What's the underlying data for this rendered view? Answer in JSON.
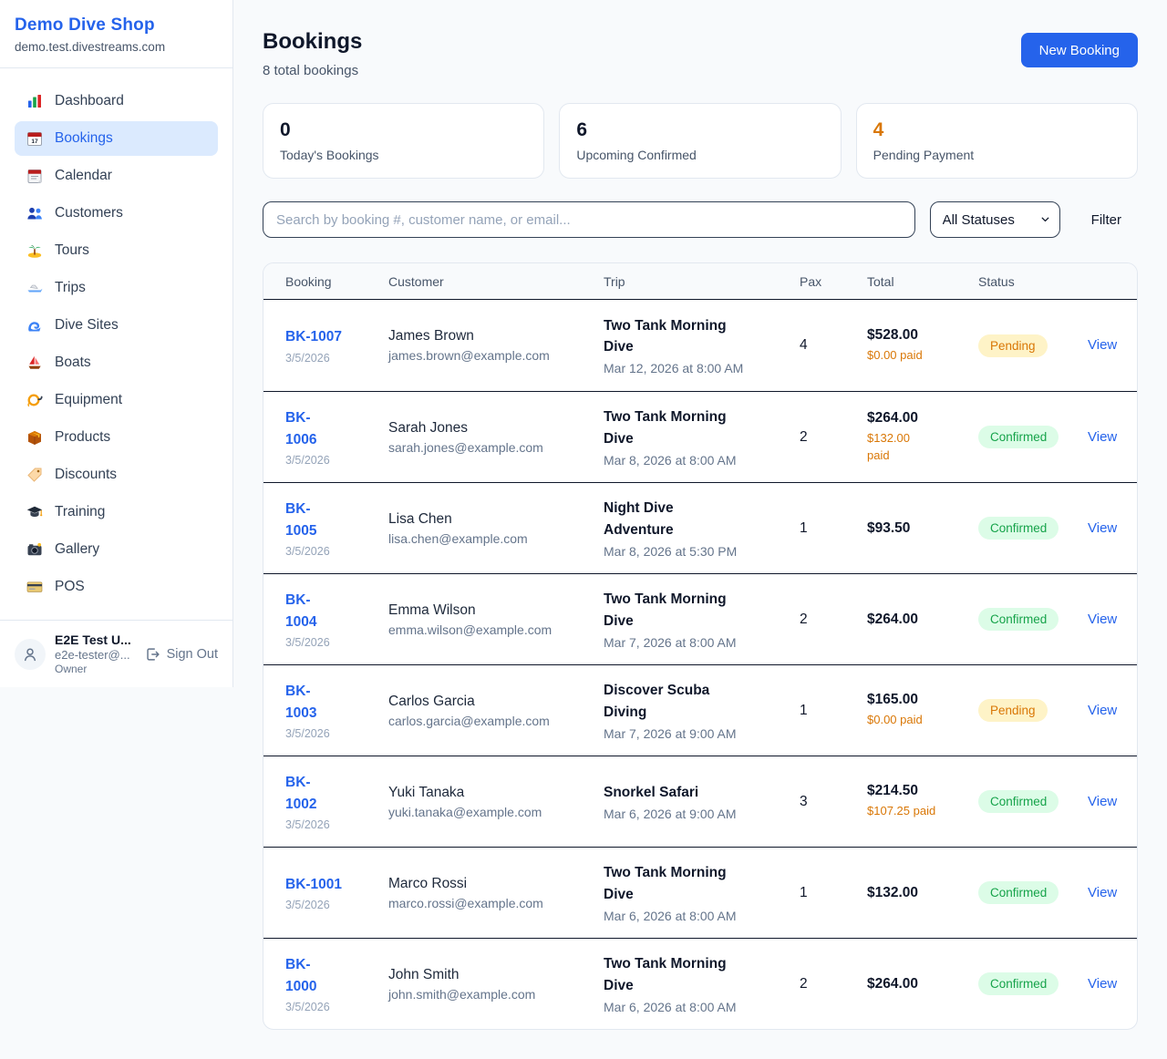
{
  "colors": {
    "accent": "#2563eb",
    "orange": "#d97706",
    "pending_badge_bg": "#fef3c7",
    "pending_badge_text": "#d97706",
    "confirmed_badge_bg": "#dcfce7",
    "confirmed_badge_text": "#16a34a"
  },
  "sidebar": {
    "shop_name": "Demo Dive Shop",
    "shop_domain": "demo.test.divestreams.com",
    "items": [
      {
        "label": "Dashboard",
        "icon": "bar-chart-icon",
        "active": false
      },
      {
        "label": "Bookings",
        "icon": "calendar-date-icon",
        "active": true
      },
      {
        "label": "Calendar",
        "icon": "calendar-icon",
        "active": false
      },
      {
        "label": "Customers",
        "icon": "people-icon",
        "active": false
      },
      {
        "label": "Tours",
        "icon": "island-icon",
        "active": false
      },
      {
        "label": "Trips",
        "icon": "speedboat-icon",
        "active": false
      },
      {
        "label": "Dive Sites",
        "icon": "wave-icon",
        "active": false
      },
      {
        "label": "Boats",
        "icon": "sailboat-icon",
        "active": false
      },
      {
        "label": "Equipment",
        "icon": "dive-mask-icon",
        "active": false
      },
      {
        "label": "Products",
        "icon": "package-icon",
        "active": false
      },
      {
        "label": "Discounts",
        "icon": "tag-icon",
        "active": false
      },
      {
        "label": "Training",
        "icon": "graduation-cap-icon",
        "active": false
      },
      {
        "label": "Gallery",
        "icon": "camera-icon",
        "active": false
      },
      {
        "label": "POS",
        "icon": "credit-card-icon",
        "active": false
      }
    ],
    "user": {
      "name": "E2E Test U...",
      "email": "e2e-tester@...",
      "role": "Owner",
      "sign_out_label": "Sign Out"
    }
  },
  "header": {
    "title": "Bookings",
    "subtitle": "8 total bookings",
    "new_booking_label": "New Booking"
  },
  "stats": [
    {
      "value": "0",
      "label": "Today's Bookings",
      "value_color": "#0f172a"
    },
    {
      "value": "6",
      "label": "Upcoming Confirmed",
      "value_color": "#0f172a"
    },
    {
      "value": "4",
      "label": "Pending Payment",
      "value_color": "#d97706"
    }
  ],
  "filters": {
    "search_placeholder": "Search by booking #, customer name, or email...",
    "search_value": "",
    "status_selected": "All Statuses",
    "filter_label": "Filter"
  },
  "table": {
    "columns": [
      "Booking",
      "Customer",
      "Trip",
      "Pax",
      "Total",
      "Status"
    ],
    "view_label": "View",
    "status_styles": {
      "Pending": {
        "bg": "#fef3c7",
        "text": "#d97706"
      },
      "Confirmed": {
        "bg": "#dcfce7",
        "text": "#16a34a"
      }
    },
    "rows": [
      {
        "id": "BK-1007",
        "id_wrapped": false,
        "date": "3/5/2026",
        "customer": "James Brown",
        "email": "james.brown@example.com",
        "trip": "Two Tank Morning Dive",
        "trip_datetime": "Mar 12, 2026 at 8:00 AM",
        "pax": "4",
        "total": "$528.00",
        "paid": "$0.00 paid",
        "paid_wrapped": false,
        "status": "Pending"
      },
      {
        "id": "BK-1006",
        "id_wrapped": true,
        "date": "3/5/2026",
        "customer": "Sarah Jones",
        "email": "sarah.jones@example.com",
        "trip": "Two Tank Morning Dive",
        "trip_datetime": "Mar 8, 2026 at 8:00 AM",
        "pax": "2",
        "total": "$264.00",
        "paid": "$132.00 paid",
        "paid_wrapped": true,
        "status": "Confirmed"
      },
      {
        "id": "BK-1005",
        "id_wrapped": true,
        "date": "3/5/2026",
        "customer": "Lisa Chen",
        "email": "lisa.chen@example.com",
        "trip": "Night Dive Adventure",
        "trip_datetime": "Mar 8, 2026 at 5:30 PM",
        "pax": "1",
        "total": "$93.50",
        "paid": null,
        "paid_wrapped": false,
        "status": "Confirmed"
      },
      {
        "id": "BK-1004",
        "id_wrapped": true,
        "date": "3/5/2026",
        "customer": "Emma Wilson",
        "email": "emma.wilson@example.com",
        "trip": "Two Tank Morning Dive",
        "trip_datetime": "Mar 7, 2026 at 8:00 AM",
        "pax": "2",
        "total": "$264.00",
        "paid": null,
        "paid_wrapped": false,
        "status": "Confirmed"
      },
      {
        "id": "BK-1003",
        "id_wrapped": true,
        "date": "3/5/2026",
        "customer": "Carlos Garcia",
        "email": "carlos.garcia@example.com",
        "trip": "Discover Scuba Diving",
        "trip_datetime": "Mar 7, 2026 at 9:00 AM",
        "pax": "1",
        "total": "$165.00",
        "paid": "$0.00 paid",
        "paid_wrapped": false,
        "status": "Pending"
      },
      {
        "id": "BK-1002",
        "id_wrapped": true,
        "date": "3/5/2026",
        "customer": "Yuki Tanaka",
        "email": "yuki.tanaka@example.com",
        "trip": "Snorkel Safari",
        "trip_datetime": "Mar 6, 2026 at 9:00 AM",
        "pax": "3",
        "total": "$214.50",
        "paid": "$107.25 paid",
        "paid_wrapped": false,
        "status": "Confirmed"
      },
      {
        "id": "BK-1001",
        "id_wrapped": false,
        "date": "3/5/2026",
        "customer": "Marco Rossi",
        "email": "marco.rossi@example.com",
        "trip": "Two Tank Morning Dive",
        "trip_datetime": "Mar 6, 2026 at 8:00 AM",
        "pax": "1",
        "total": "$132.00",
        "paid": null,
        "paid_wrapped": false,
        "status": "Confirmed"
      },
      {
        "id": "BK-1000",
        "id_wrapped": true,
        "date": "3/5/2026",
        "customer": "John Smith",
        "email": "john.smith@example.com",
        "trip": "Two Tank Morning Dive",
        "trip_datetime": "Mar 6, 2026 at 8:00 AM",
        "pax": "2",
        "total": "$264.00",
        "paid": null,
        "paid_wrapped": false,
        "status": "Confirmed"
      }
    ]
  }
}
